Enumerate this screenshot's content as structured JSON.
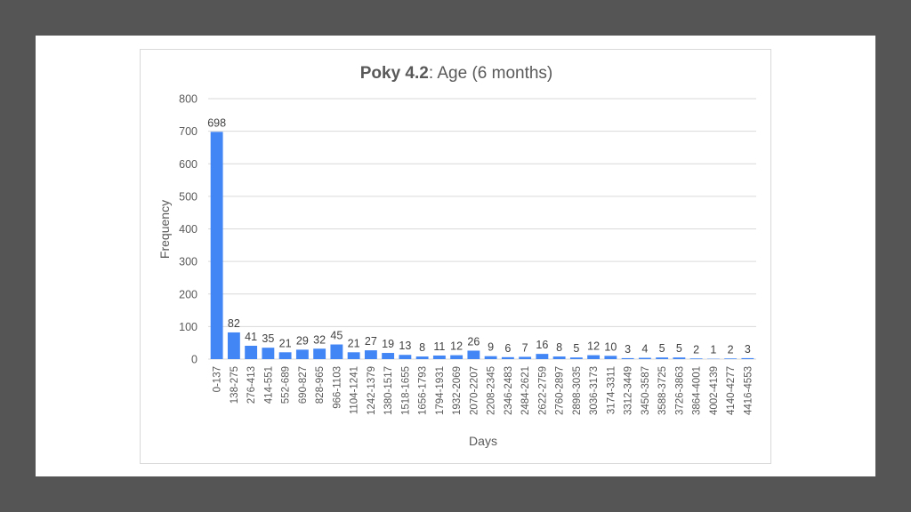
{
  "chart_data": {
    "type": "bar",
    "title_bold": "Poky 4.2",
    "title_rest": ": Age (6 months)",
    "xlabel": "Days",
    "ylabel": "Frequency",
    "ylim": [
      0,
      800
    ],
    "yticks": [
      "0",
      "100",
      "200",
      "300",
      "400",
      "500",
      "600",
      "700",
      "800"
    ],
    "grid": true,
    "bar_color": "#4285f4",
    "categories": [
      "0-137",
      "138-275",
      "276-413",
      "414-551",
      "552-689",
      "690-827",
      "828-965",
      "966-1103",
      "1104-1241",
      "1242-1379",
      "1380-1517",
      "1518-1655",
      "1656-1793",
      "1794-1931",
      "1932-2069",
      "2070-2207",
      "2208-2345",
      "2346-2483",
      "2484-2621",
      "2622-2759",
      "2760-2897",
      "2898-3035",
      "3036-3173",
      "3174-3311",
      "3312-3449",
      "3450-3587",
      "3588-3725",
      "3726-3863",
      "3864-4001",
      "4002-4139",
      "4140-4277",
      "4416-4553"
    ],
    "values": [
      698,
      82,
      41,
      35,
      21,
      29,
      32,
      45,
      21,
      27,
      19,
      13,
      8,
      11,
      12,
      26,
      9,
      6,
      7,
      16,
      8,
      5,
      12,
      10,
      3,
      4,
      5,
      5,
      2,
      1,
      2,
      3
    ]
  }
}
